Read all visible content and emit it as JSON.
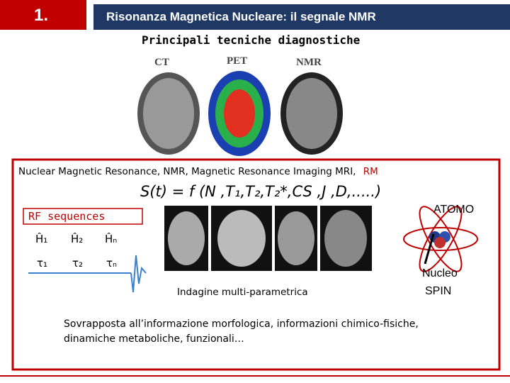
{
  "header": {
    "number": "1.",
    "title": "Risonanza Magnetica Nucleare: il segnale NMR"
  },
  "subtitle": "Principali tecniche diagnostiche",
  "images": [
    {
      "label": "CT"
    },
    {
      "label": "PET"
    },
    {
      "label": "NMR"
    }
  ],
  "box": {
    "intro": "Nuclear Magnetic Resonance, NMR, Magnetic Resonance Imaging MRI,",
    "intro_highlight": "RM",
    "formula": "S(t) = f (N ,T₁,T₂,T₂*,CS ,J ,D,.....)",
    "rf_title": "RF sequences",
    "pulses": [
      "Ĥ₁",
      "Ĥ₂",
      "Ĥₙ"
    ],
    "delays": [
      "τ₁",
      "τ₂",
      "τₙ"
    ],
    "caption": "Indagine multi-parametrica",
    "atom_label": "ATOMO",
    "nucleus_label": "Nucleo",
    "spin_label": "SPIN",
    "footer": "Sovrapposta all’informazione morfologica, informazioni chimico-fisiche, dinamiche metaboliche, funzionali…"
  }
}
